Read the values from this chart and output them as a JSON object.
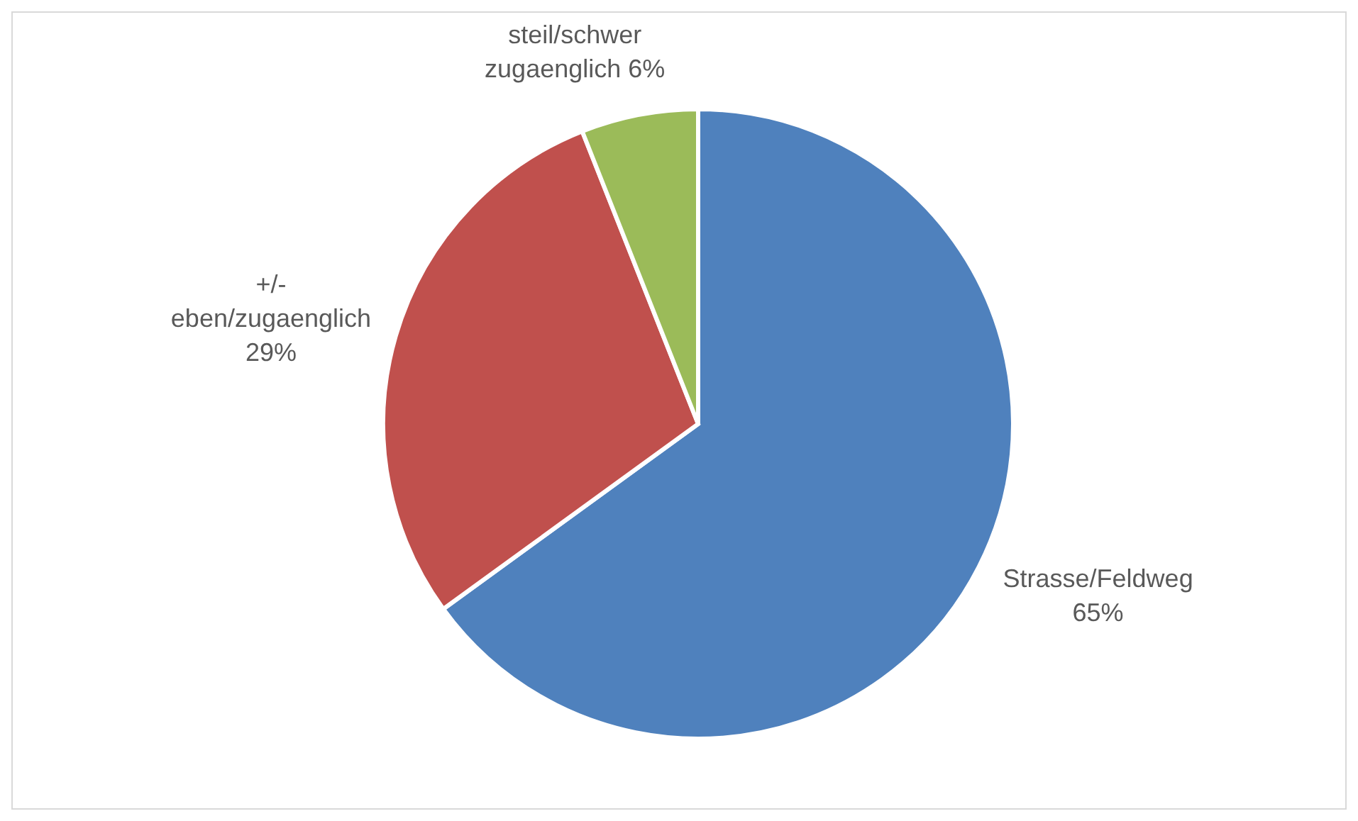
{
  "chart_data": {
    "type": "pie",
    "categories": [
      "Strasse/Feldweg",
      "+/- eben/zugaenglich",
      "steil/schwer zugaenglich"
    ],
    "values": [
      65,
      29,
      6
    ],
    "colors": [
      "#4f81bd",
      "#c0504d",
      "#9bbb59"
    ],
    "value_labels": [
      "65%",
      "29%",
      "6%"
    ]
  }
}
